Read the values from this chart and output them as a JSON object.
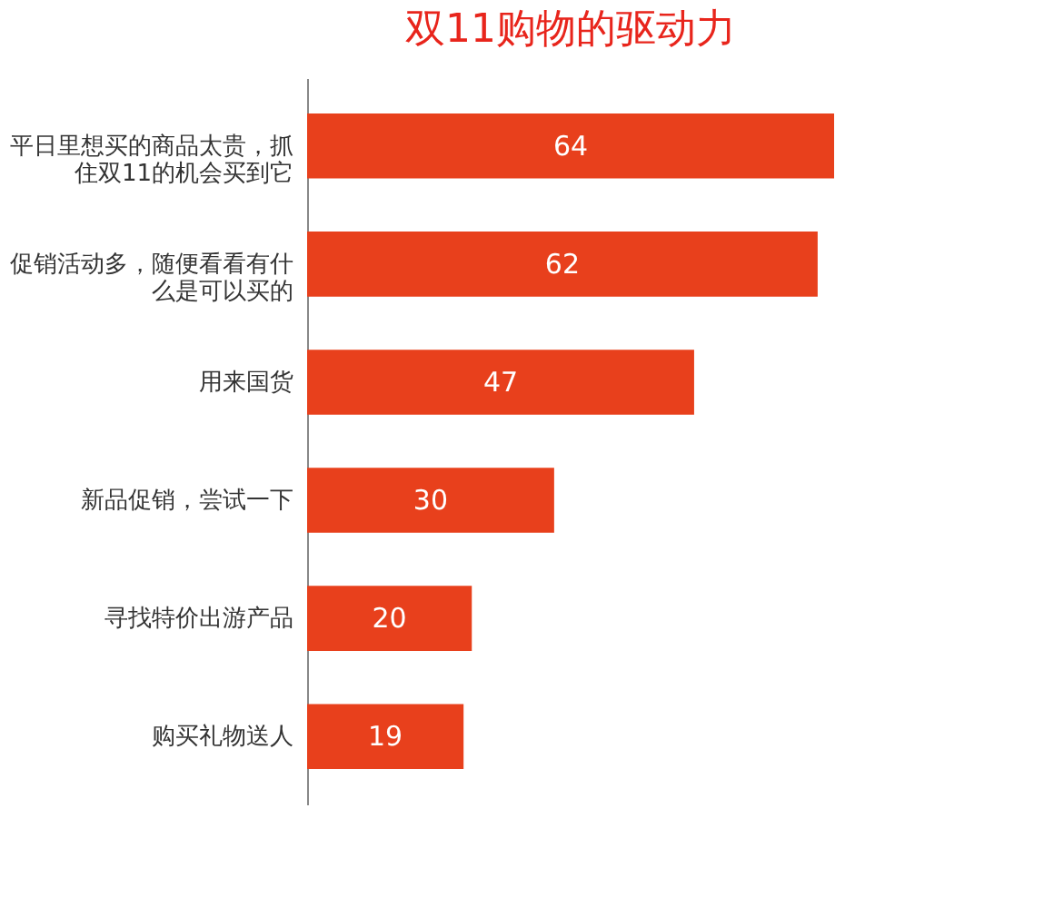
{
  "chart_data": {
    "type": "bar",
    "orientation": "horizontal",
    "title": "双11购物的驱动力",
    "categories": [
      "平日里想买的商品太贵，抓住双11的机会买到它",
      "促销活动多，随便看看有什么是可以买的",
      "用来国货",
      "新品促销，尝试一下",
      "寻找特价出游产品",
      "购买礼物送人"
    ],
    "values": [
      64,
      62,
      47,
      30,
      20,
      19
    ],
    "color": "#e8401c",
    "data_labels": true
  }
}
